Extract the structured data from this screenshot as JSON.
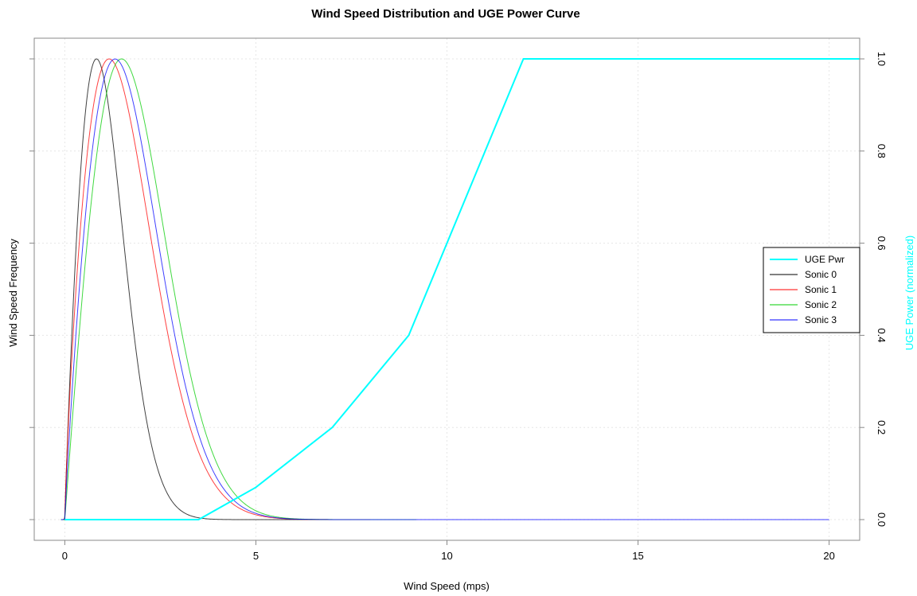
{
  "chart_data": {
    "type": "line",
    "title": "Wind Speed Distribution and UGE Power Curve",
    "xlabel": "Wind Speed (mps)",
    "ylabel": "Wind Speed Frequency",
    "y2label": "UGE Power (normalized)",
    "xlim": [
      -0.8,
      20.8
    ],
    "ylim": [
      0,
      1
    ],
    "y2lim": [
      -0.04,
      1.04
    ],
    "x_ticks": [
      0,
      5,
      10,
      15,
      20
    ],
    "y2_ticks": [
      0.0,
      0.2,
      0.4,
      0.6,
      0.8,
      1.0
    ],
    "y2_tick_labels": [
      "0.0",
      "0.2",
      "0.4",
      "0.6",
      "0.8",
      "1.0"
    ],
    "grid": true,
    "legend_position": "right",
    "series": [
      {
        "name": "UGE Pwr",
        "axis": "right",
        "color": "#00ffff",
        "x": [
          0,
          3.5,
          5,
          7,
          9,
          12,
          20.8
        ],
        "y": [
          0,
          0,
          0.07,
          0.2,
          0.4,
          1.0,
          1.0
        ]
      },
      {
        "name": "Sonic 0",
        "axis": "left",
        "color": "#000000",
        "dist": "weibull",
        "shape": 1.9,
        "scale": 1.23,
        "x_range": [
          -0.1,
          7.5
        ]
      },
      {
        "name": "Sonic 1",
        "axis": "left",
        "color": "#ff0000",
        "dist": "weibull",
        "shape": 1.8,
        "scale": 1.82,
        "x_range": [
          -0.1,
          8.0
        ]
      },
      {
        "name": "Sonic 2",
        "axis": "left",
        "color": "#00cc00",
        "dist": "weibull",
        "shape": 2.0,
        "scale": 2.1,
        "x_range": [
          -0.1,
          9.2
        ]
      },
      {
        "name": "Sonic 3",
        "axis": "left",
        "color": "#0000ff",
        "dist": "weibull",
        "shape": 1.9,
        "scale": 1.95,
        "x_range": [
          -0.1,
          20
        ]
      }
    ]
  }
}
